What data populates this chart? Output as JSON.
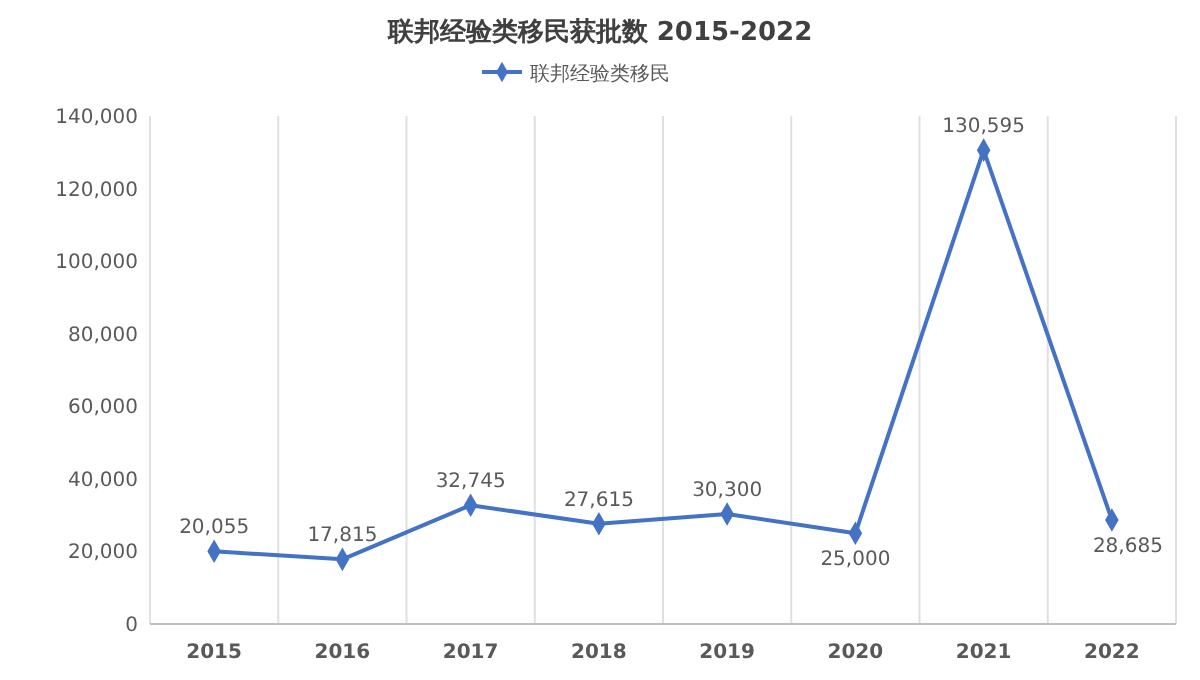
{
  "chart_data": {
    "type": "line",
    "title": "联邦经验类移民获批数 2015-2022",
    "categories": [
      "2015",
      "2016",
      "2017",
      "2018",
      "2019",
      "2020",
      "2021",
      "2022"
    ],
    "series": [
      {
        "name": "联邦经验类移民",
        "color": "#4472c4",
        "values": [
          20055,
          17815,
          32745,
          27615,
          30300,
          25000,
          130595,
          28685
        ],
        "value_labels": [
          "20,055",
          "17,815",
          "32,745",
          "27,615",
          "30,300",
          "25,000",
          "130,595",
          "28,685"
        ]
      }
    ],
    "ylim": [
      0,
      140000
    ],
    "yticks": [
      {
        "value": 0,
        "label": "0"
      },
      {
        "value": 20000,
        "label": "20,000"
      },
      {
        "value": 40000,
        "label": "40,000"
      },
      {
        "value": 60000,
        "label": "60,000"
      },
      {
        "value": 80000,
        "label": "80,000"
      },
      {
        "value": 100000,
        "label": "100,000"
      },
      {
        "value": 120000,
        "label": "120,000"
      },
      {
        "value": 140000,
        "label": "140,000"
      }
    ],
    "grid": "x",
    "legend": "top",
    "marker": "diamond",
    "line_style": "solid"
  }
}
